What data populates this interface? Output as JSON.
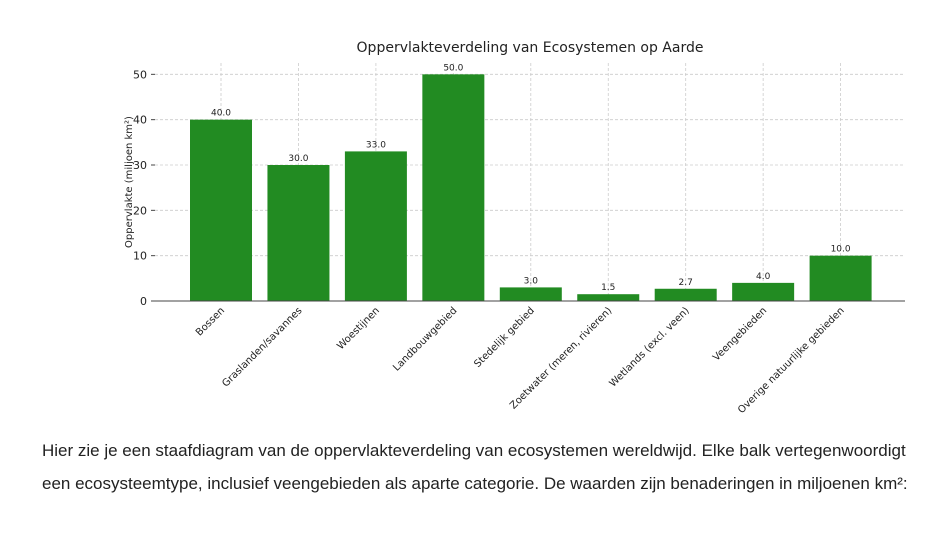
{
  "chart_data": {
    "type": "bar",
    "title": "Oppervlakteverdeling van Ecosystemen op Aarde",
    "y_label": "Oppervlakte (miljoen km²)",
    "categories": [
      "Bossen",
      "Graslanden/savannes",
      "Woestijnen",
      "Landbouwgebied",
      "Stedelijk gebied",
      "Zoetwater (meren, rivieren)",
      "Wetlands (excl. veen)",
      "Veengebieden",
      "Overige natuurlijke gebieden"
    ],
    "values": [
      40,
      30,
      33,
      50,
      3,
      1.5,
      2.7,
      4,
      10
    ],
    "value_labels": [
      "40.0",
      "30.0",
      "33.0",
      "50.0",
      "3.0",
      "1.5",
      "2.7",
      "4.0",
      "10.0"
    ],
    "color": "#228b22",
    "ylim": [
      0,
      52.5
    ],
    "yticks": [
      0,
      10,
      20,
      30,
      40,
      50
    ],
    "grid": true
  },
  "paragraph": "Hier zie je een staafdiagram van de oppervlakteverdeling van ecosystemen wereldwijd. Elke balk vertegenwoordigt een ecosysteemtype, inclusief veengebieden als aparte categorie. De waarden zijn benaderingen in miljoenen km²:"
}
